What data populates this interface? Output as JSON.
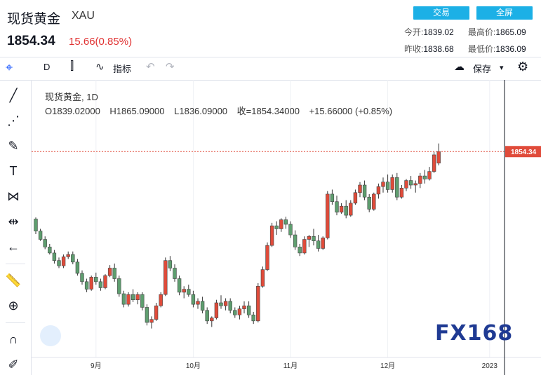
{
  "header": {
    "title": "现货黄金",
    "symbol": "XAU",
    "price": "1854.34",
    "change": "15.66(0.85%)",
    "trade_button": "交易",
    "fullscreen_button": "全屏",
    "open_label": "今开:",
    "open_value": "1839.02",
    "high_label": "最高价:",
    "high_value": "1865.09",
    "prevclose_label": "昨收:",
    "prevclose_value": "1838.68",
    "low_label": "最低价:",
    "low_value": "1836.09"
  },
  "toolbar": {
    "interval": "D",
    "indicators_label": "指标",
    "save_label": "保存"
  },
  "legend": {
    "line1": "现货黄金, 1D",
    "open": "O1839.02000",
    "high": "H1865.09000",
    "low": "L1836.09000",
    "close": "收=1854.34000",
    "change": "+15.66000 (+0.85%)"
  },
  "watermark": "FX168",
  "colors": {
    "up": "#e04b3a",
    "down": "#5e9e6f",
    "accent": "#1cb0e6",
    "price_tag": "#e04b3a"
  },
  "chart_data": {
    "type": "candlestick",
    "title": "现货黄金",
    "x_tick_labels": [
      "9月",
      "10月",
      "11月",
      "12月",
      "2023"
    ],
    "x_tick_positions": [
      13,
      34,
      55,
      76,
      98
    ],
    "last_price_label": "1854.34",
    "ylim": [
      1615,
      1875
    ],
    "grid": true,
    "candles": [
      [
        1765,
        1767,
        1745,
        1749
      ],
      [
        1749,
        1752,
        1736,
        1738
      ],
      [
        1738,
        1742,
        1725,
        1728
      ],
      [
        1728,
        1732,
        1718,
        1720
      ],
      [
        1720,
        1724,
        1706,
        1710
      ],
      [
        1710,
        1714,
        1700,
        1703
      ],
      [
        1703,
        1718,
        1700,
        1715
      ],
      [
        1715,
        1722,
        1712,
        1718
      ],
      [
        1718,
        1722,
        1705,
        1708
      ],
      [
        1708,
        1712,
        1690,
        1693
      ],
      [
        1693,
        1697,
        1678,
        1682
      ],
      [
        1682,
        1686,
        1668,
        1672
      ],
      [
        1672,
        1690,
        1670,
        1688
      ],
      [
        1688,
        1694,
        1678,
        1682
      ],
      [
        1682,
        1686,
        1670,
        1674
      ],
      [
        1674,
        1692,
        1672,
        1690
      ],
      [
        1690,
        1704,
        1688,
        1700
      ],
      [
        1700,
        1706,
        1682,
        1686
      ],
      [
        1686,
        1690,
        1662,
        1666
      ],
      [
        1666,
        1670,
        1648,
        1652
      ],
      [
        1652,
        1668,
        1649,
        1665
      ],
      [
        1665,
        1672,
        1655,
        1658
      ],
      [
        1658,
        1668,
        1652,
        1665
      ],
      [
        1665,
        1668,
        1644,
        1648
      ],
      [
        1648,
        1652,
        1624,
        1628
      ],
      [
        1628,
        1636,
        1620,
        1632
      ],
      [
        1632,
        1654,
        1630,
        1650
      ],
      [
        1650,
        1668,
        1648,
        1665
      ],
      [
        1665,
        1714,
        1663,
        1710
      ],
      [
        1710,
        1716,
        1696,
        1700
      ],
      [
        1700,
        1705,
        1682,
        1686
      ],
      [
        1686,
        1690,
        1664,
        1668
      ],
      [
        1668,
        1676,
        1660,
        1672
      ],
      [
        1672,
        1678,
        1662,
        1665
      ],
      [
        1665,
        1670,
        1648,
        1652
      ],
      [
        1652,
        1660,
        1646,
        1656
      ],
      [
        1656,
        1662,
        1640,
        1644
      ],
      [
        1644,
        1648,
        1626,
        1630
      ],
      [
        1630,
        1636,
        1622,
        1634
      ],
      [
        1634,
        1658,
        1632,
        1654
      ],
      [
        1654,
        1664,
        1646,
        1650
      ],
      [
        1650,
        1660,
        1644,
        1656
      ],
      [
        1656,
        1660,
        1640,
        1644
      ],
      [
        1644,
        1648,
        1634,
        1638
      ],
      [
        1638,
        1650,
        1632,
        1646
      ],
      [
        1646,
        1656,
        1640,
        1650
      ],
      [
        1650,
        1656,
        1634,
        1638
      ],
      [
        1638,
        1642,
        1626,
        1630
      ],
      [
        1630,
        1680,
        1628,
        1676
      ],
      [
        1676,
        1702,
        1674,
        1698
      ],
      [
        1698,
        1734,
        1696,
        1730
      ],
      [
        1730,
        1760,
        1728,
        1756
      ],
      [
        1756,
        1762,
        1744,
        1752
      ],
      [
        1752,
        1766,
        1748,
        1764
      ],
      [
        1764,
        1768,
        1752,
        1758
      ],
      [
        1758,
        1762,
        1740,
        1744
      ],
      [
        1744,
        1750,
        1724,
        1728
      ],
      [
        1728,
        1732,
        1716,
        1720
      ],
      [
        1720,
        1742,
        1718,
        1738
      ],
      [
        1738,
        1744,
        1728,
        1742
      ],
      [
        1742,
        1752,
        1730,
        1736
      ],
      [
        1736,
        1744,
        1722,
        1726
      ],
      [
        1726,
        1742,
        1724,
        1740
      ],
      [
        1740,
        1802,
        1738,
        1798
      ],
      [
        1798,
        1804,
        1784,
        1788
      ],
      [
        1788,
        1796,
        1770,
        1774
      ],
      [
        1774,
        1786,
        1772,
        1782
      ],
      [
        1782,
        1790,
        1766,
        1770
      ],
      [
        1770,
        1790,
        1768,
        1786
      ],
      [
        1786,
        1804,
        1784,
        1800
      ],
      [
        1800,
        1814,
        1794,
        1810
      ],
      [
        1810,
        1816,
        1790,
        1794
      ],
      [
        1794,
        1798,
        1774,
        1778
      ],
      [
        1778,
        1800,
        1776,
        1798
      ],
      [
        1798,
        1812,
        1792,
        1808
      ],
      [
        1808,
        1820,
        1800,
        1814
      ],
      [
        1814,
        1824,
        1800,
        1804
      ],
      [
        1804,
        1824,
        1800,
        1820
      ],
      [
        1820,
        1826,
        1790,
        1794
      ],
      [
        1794,
        1810,
        1792,
        1806
      ],
      [
        1806,
        1818,
        1802,
        1816
      ],
      [
        1816,
        1822,
        1805,
        1810
      ],
      [
        1810,
        1816,
        1800,
        1812
      ],
      [
        1812,
        1826,
        1806,
        1822
      ],
      [
        1822,
        1830,
        1812,
        1818
      ],
      [
        1818,
        1834,
        1816,
        1828
      ],
      [
        1828,
        1854,
        1826,
        1850
      ],
      [
        1839.02,
        1865.09,
        1836.09,
        1854.34
      ]
    ]
  }
}
